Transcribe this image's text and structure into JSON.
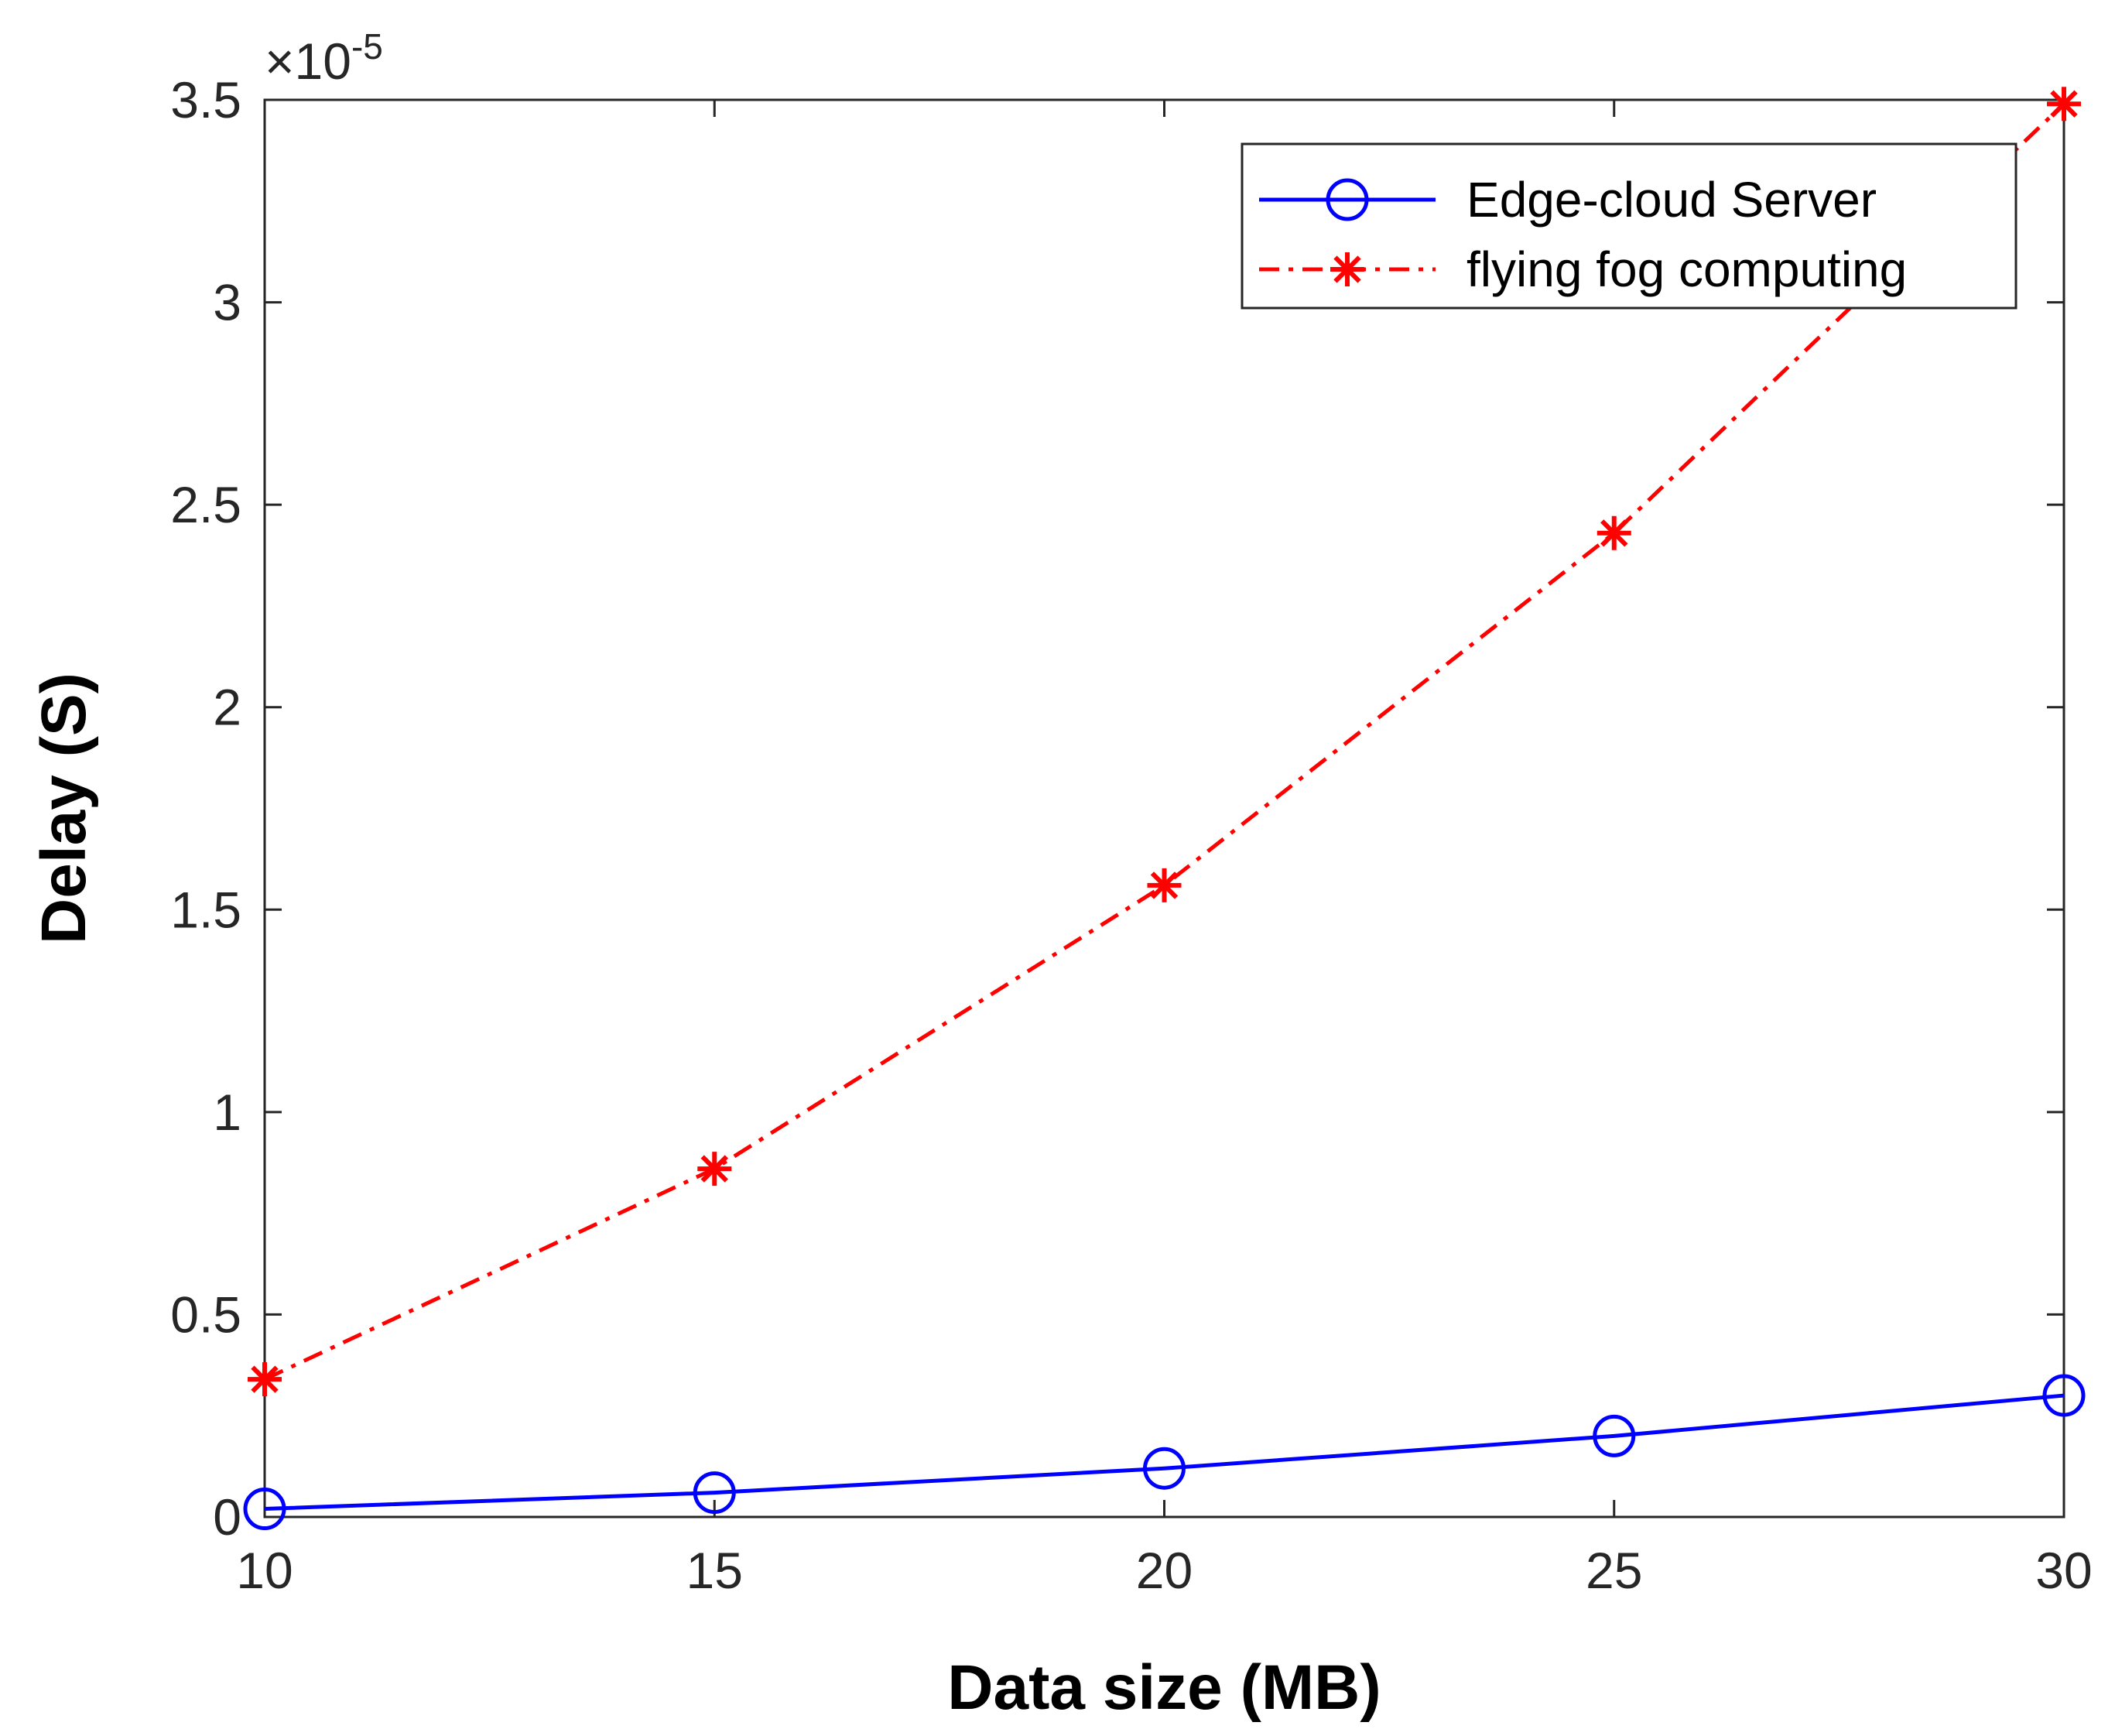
{
  "chart_data": {
    "type": "line",
    "title": "",
    "xlabel": "Data size (MB)",
    "ylabel": "Delay (S)",
    "x": [
      10,
      15,
      20,
      25,
      30
    ],
    "xlim": [
      10,
      30
    ],
    "ylim": [
      0,
      3.5e-05
    ],
    "y_exponent_label": "×10",
    "y_exponent_power": "-5",
    "x_ticks": [
      "10",
      "15",
      "20",
      "25",
      "30"
    ],
    "y_ticks": [
      "0",
      "0.5",
      "1",
      "1.5",
      "2",
      "2.5",
      "3",
      "3.5"
    ],
    "y_tick_values": [
      0,
      5e-06,
      1e-05,
      1.5e-05,
      2e-05,
      2.5e-05,
      3e-05,
      3.5e-05
    ],
    "grid": false,
    "legend_position": "top-right",
    "series": [
      {
        "name": "Edge-cloud Server",
        "values": [
          2e-07,
          6e-07,
          1.2e-06,
          2e-06,
          3e-06
        ],
        "color": "#0000ff",
        "line_style": "solid",
        "marker": "circle"
      },
      {
        "name": "flying fog computing",
        "values": [
          3.4e-06,
          8.6e-06,
          1.56e-05,
          2.43e-05,
          3.49e-05
        ],
        "color": "#ff0000",
        "line_style": "dash-dot",
        "marker": "asterisk"
      }
    ]
  }
}
